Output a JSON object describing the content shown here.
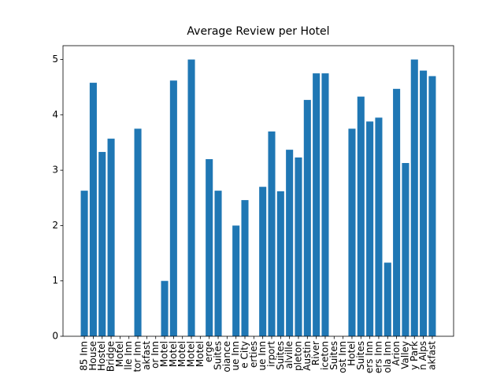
{
  "chart_data": {
    "type": "bar",
    "title": "Average Review per Hotel",
    "categories": [
      "85 Inn",
      "House",
      "Hostel",
      "Bridge",
      "Motel",
      "lle Inn",
      "tor Inn",
      "akfast",
      "or Inn",
      "Motel",
      "Motel",
      "Motel",
      "Motel",
      "Motel",
      "erge",
      "Suites",
      "oiance",
      "ue Inn",
      "e City",
      "erties",
      "ue Inn",
      "irport",
      "Suites",
      "alville",
      "pleton",
      "Austin",
      "River",
      "iceton",
      "Suites",
      "ost Inn",
      "Hotel",
      "Suites",
      "ers Inn",
      "ers Inn",
      "ola Inn",
      "Arion",
      "Valley",
      "y Park",
      "n Alps",
      "akfast"
    ],
    "values": [
      2.63,
      4.58,
      3.33,
      3.57,
      0,
      0,
      3.75,
      0,
      0,
      1.0,
      4.62,
      0,
      5.0,
      0,
      3.2,
      2.63,
      0,
      2.0,
      2.46,
      0,
      2.7,
      3.7,
      2.62,
      3.37,
      3.23,
      4.27,
      4.75,
      4.75,
      0,
      0,
      3.75,
      4.33,
      3.88,
      3.95,
      1.33,
      4.47,
      3.13,
      5.0,
      4.8,
      4.7
    ],
    "color": "#1f77b4",
    "ylim": [
      0,
      5.25
    ],
    "yticks": [
      0,
      1,
      2,
      3,
      4,
      5
    ]
  }
}
